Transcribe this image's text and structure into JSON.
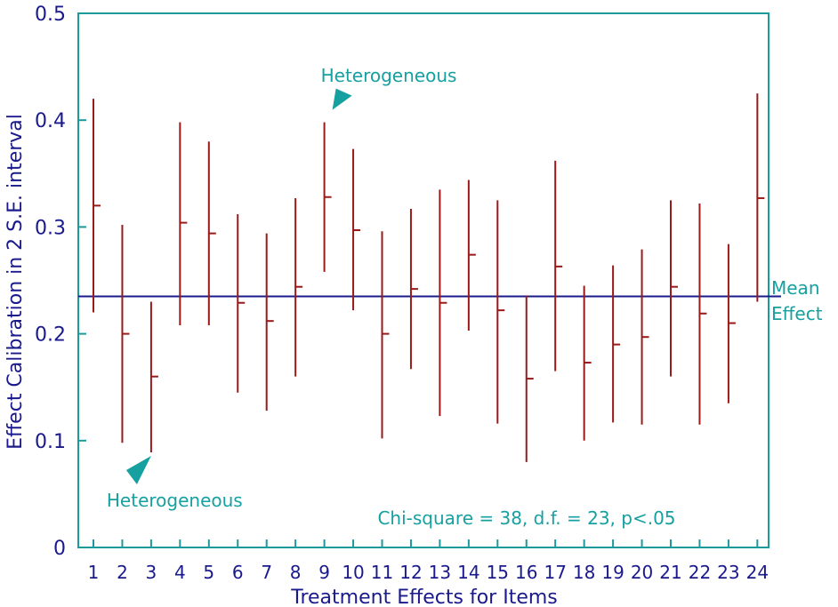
{
  "chart_data": {
    "type": "errorbar",
    "xlabel": "Treatment Effects for Items",
    "ylabel": "Effect Calibration in 2 S.E. interval",
    "ylim": [
      0,
      0.5
    ],
    "yticks": [
      "0",
      "0.1",
      "0.2",
      "0.3",
      "0.4",
      "0.5"
    ],
    "categories": [
      "1",
      "2",
      "3",
      "4",
      "5",
      "6",
      "7",
      "8",
      "9",
      "10",
      "11",
      "12",
      "13",
      "14",
      "15",
      "16",
      "17",
      "18",
      "19",
      "20",
      "21",
      "22",
      "23",
      "24"
    ],
    "estimates": [
      0.32,
      0.2,
      0.16,
      0.304,
      0.294,
      0.229,
      0.212,
      0.244,
      0.328,
      0.297,
      0.2,
      0.242,
      0.229,
      0.274,
      0.222,
      0.158,
      0.263,
      0.173,
      0.19,
      0.197,
      0.244,
      0.219,
      0.21,
      0.327
    ],
    "lower": [
      0.22,
      0.098,
      0.089,
      0.208,
      0.208,
      0.145,
      0.128,
      0.16,
      0.258,
      0.222,
      0.102,
      0.167,
      0.123,
      0.203,
      0.116,
      0.08,
      0.165,
      0.1,
      0.117,
      0.115,
      0.16,
      0.115,
      0.135,
      0.23
    ],
    "upper": [
      0.42,
      0.302,
      0.23,
      0.398,
      0.38,
      0.312,
      0.294,
      0.327,
      0.398,
      0.373,
      0.296,
      0.317,
      0.335,
      0.344,
      0.325,
      0.236,
      0.362,
      0.245,
      0.264,
      0.279,
      0.325,
      0.322,
      0.284,
      0.425
    ],
    "mean_effect": 0.235,
    "mean_label_line1": "Mean",
    "mean_label_line2": "Effect",
    "annotations": [
      {
        "text": "Heterogeneous",
        "item": 9
      },
      {
        "text": "Heterogeneous",
        "item": 3
      }
    ],
    "stats_text": "Chi-square = 38,  d.f. = 23,  p<.05",
    "grid": false,
    "colors": {
      "axis": "#1a9a9a",
      "bar": "#9a1a1a",
      "mean_line": "#1a1a8c",
      "text": "#1a1a8c",
      "annotation": "#17a0a0"
    }
  }
}
